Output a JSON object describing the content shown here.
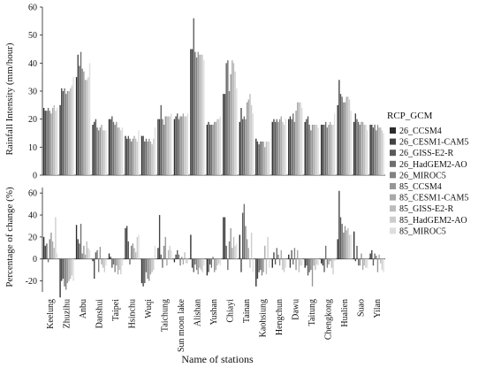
{
  "chart_data": [
    {
      "type": "bar",
      "panel": "top",
      "ylabel": "Rainfall Intensity (mm/hour)",
      "ylim": [
        0,
        60
      ],
      "yticks": [
        0,
        10,
        20,
        30,
        40,
        50,
        60
      ],
      "grid": false,
      "categories": [
        "Keelung",
        "Zhuzihu",
        "Anbu",
        "Danshui",
        "Taipei",
        "Hsinchu",
        "Wuqi",
        "Taichung",
        "Sun moon lake",
        "Alishan",
        "Yushan",
        "Chiayi",
        "Tainan",
        "Kaohsiung",
        "Hengchun",
        "Dawu",
        "Taitung",
        "Chengkong",
        "Hualien",
        "Suao",
        "Yilan"
      ],
      "series": [
        {
          "name": "26_CCSM4",
          "values": [
            24,
            25,
            35,
            18,
            20,
            14,
            14,
            20,
            20,
            45,
            18,
            29,
            19,
            13,
            19,
            20,
            19,
            18,
            25,
            19,
            18
          ]
        },
        {
          "name": "26_CESM1-CAM5",
          "values": [
            23,
            31,
            43,
            19,
            20,
            13,
            14,
            20,
            21,
            45,
            19,
            29,
            24,
            12,
            20,
            21,
            20,
            18,
            34,
            22,
            18
          ]
        },
        {
          "name": "26_GISS-E2-R",
          "values": [
            23,
            30,
            39,
            20,
            21,
            14,
            12,
            25,
            22,
            56,
            18,
            40,
            20,
            11,
            19,
            20,
            21,
            18,
            29,
            20,
            17
          ]
        },
        {
          "name": "26_HadGEM2-AO",
          "values": [
            24,
            31,
            44,
            17,
            19,
            13,
            13,
            20,
            20,
            44,
            18,
            41,
            21,
            12,
            20,
            22,
            18,
            19,
            28,
            19,
            18
          ]
        },
        {
          "name": "26_MIROC5",
          "values": [
            23,
            29,
            38,
            16,
            18,
            12,
            12,
            18,
            21,
            42,
            18,
            30,
            20,
            12,
            19,
            19,
            16,
            17,
            26,
            18,
            16
          ]
        },
        {
          "name": "85_CCSM4",
          "values": [
            22,
            30,
            37,
            17,
            19,
            13,
            13,
            21,
            21,
            44,
            19,
            36,
            26,
            12,
            20,
            23,
            18,
            18,
            26,
            19,
            18
          ]
        },
        {
          "name": "85_CESM1-CAM5",
          "values": [
            24,
            30,
            34,
            18,
            17,
            14,
            12,
            21,
            22,
            43,
            19,
            41,
            27,
            10,
            21,
            26,
            18,
            19,
            28,
            19,
            17
          ]
        },
        {
          "name": "85_GISS-E2-R",
          "values": [
            25,
            31,
            34,
            16,
            17,
            13,
            11,
            21,
            21,
            43,
            20,
            40,
            29,
            12,
            19,
            26,
            18,
            18,
            28,
            18,
            17
          ]
        },
        {
          "name": "85_HadGEM2-AO",
          "values": [
            23,
            32,
            35,
            16,
            16,
            12,
            13,
            21,
            21,
            43,
            20,
            37,
            25,
            12,
            18,
            26,
            18,
            18,
            27,
            18,
            16
          ]
        },
        {
          "name": "85_MIROC5",
          "values": [
            24,
            35,
            40,
            16,
            17,
            16,
            17,
            22,
            22,
            41,
            21,
            31,
            22,
            12,
            20,
            24,
            17,
            22,
            23,
            16,
            15
          ]
        }
      ]
    },
    {
      "type": "bar",
      "panel": "bottom",
      "xlabel": "Name of stations",
      "ylabel": "Percentage of change (%)",
      "ylim": [
        -30,
        65
      ],
      "yticks": [
        -20,
        0,
        20,
        40,
        60
      ],
      "grid": false,
      "categories": [
        "Keelung",
        "Zhuzihu",
        "Anbu",
        "Danshui",
        "Taipei",
        "Hsinchu",
        "Wuqi",
        "Taichung",
        "Sun moon lake",
        "Alishan",
        "Yushan",
        "Chiayi",
        "Tainan",
        "Kaohsiung",
        "Hengchun",
        "Dawu",
        "Taitung",
        "Chengkong",
        "Hualien",
        "Suao",
        "Yilan"
      ],
      "series": [
        {
          "name": "26_CCSM4",
          "values": [
            20,
            -35,
            31,
            -2,
            5,
            28,
            -22,
            10,
            -3,
            22,
            -15,
            38,
            22,
            -25,
            -8,
            4,
            -8,
            -4,
            18,
            25,
            5
          ]
        },
        {
          "name": "26_CESM1-CAM5",
          "values": [
            12,
            -20,
            18,
            -18,
            2,
            30,
            -25,
            40,
            4,
            -8,
            -12,
            38,
            -12,
            -18,
            6,
            -8,
            -6,
            -6,
            62,
            -2,
            8
          ]
        },
        {
          "name": "26_GISS-E2-R",
          "values": [
            14,
            -18,
            14,
            6,
            -8,
            16,
            -22,
            4,
            8,
            -12,
            -5,
            12,
            42,
            -12,
            -5,
            8,
            -15,
            -12,
            38,
            12,
            -6
          ]
        },
        {
          "name": "26_HadGEM2-AO",
          "values": [
            -3,
            -25,
            32,
            8,
            -5,
            -5,
            -12,
            -8,
            4,
            -5,
            -8,
            -10,
            50,
            -10,
            10,
            -5,
            -12,
            12,
            32,
            -6,
            5
          ]
        },
        {
          "name": "26_MIROC5",
          "values": [
            18,
            -28,
            5,
            -12,
            -12,
            12,
            -18,
            12,
            -6,
            -10,
            2,
            16,
            30,
            -15,
            4,
            10,
            -10,
            -8,
            24,
            -6,
            3
          ]
        },
        {
          "name": "85_CCSM4",
          "values": [
            24,
            -22,
            12,
            11,
            -6,
            14,
            -20,
            20,
            2,
            -14,
            -12,
            28,
            18,
            -12,
            -6,
            -10,
            -25,
            -5,
            30,
            5,
            -12
          ]
        },
        {
          "name": "85_CESM1-CAM5",
          "values": [
            16,
            -20,
            4,
            -5,
            -14,
            10,
            -14,
            -6,
            -5,
            -8,
            -10,
            10,
            10,
            12,
            8,
            8,
            -6,
            -2,
            26,
            -10,
            4
          ]
        },
        {
          "name": "85_GISS-E2-R",
          "values": [
            10,
            -18,
            16,
            -8,
            -10,
            6,
            -12,
            8,
            6,
            -10,
            -6,
            20,
            -8,
            -14,
            -10,
            -12,
            -10,
            -8,
            28,
            -6,
            -4
          ]
        },
        {
          "name": "85_HadGEM2-AO",
          "values": [
            38,
            -15,
            10,
            -12,
            -14,
            20,
            -10,
            12,
            -4,
            -12,
            -4,
            12,
            24,
            20,
            -12,
            -6,
            -5,
            -14,
            22,
            -8,
            -10
          ]
        },
        {
          "name": "85_MIROC5",
          "values": [
            5,
            -20,
            8,
            -6,
            -6,
            22,
            12,
            8,
            -4,
            -6,
            -6,
            14,
            -12,
            -8,
            -8,
            -6,
            -6,
            -2,
            22,
            -8,
            -12
          ]
        }
      ]
    }
  ],
  "legend": {
    "title": "RCP_GCM",
    "entries": [
      "26_CCSM4",
      "26_CESM1-CAM5",
      "26_GISS-E2-R",
      "26_HadGEM2-AO",
      "26_MIROC5",
      "85_CCSM4",
      "85_CESM1-CAM5",
      "85_GISS-E2-R",
      "85_HadGEM2-AO",
      "85_MIROC5"
    ],
    "placement": "right"
  },
  "colors": [
    "#2b2b2b",
    "#434343",
    "#5a5a5a",
    "#6e6e6e",
    "#828282",
    "#969696",
    "#a9a9a9",
    "#bcbcbc",
    "#cdcdcd",
    "#dedede"
  ]
}
